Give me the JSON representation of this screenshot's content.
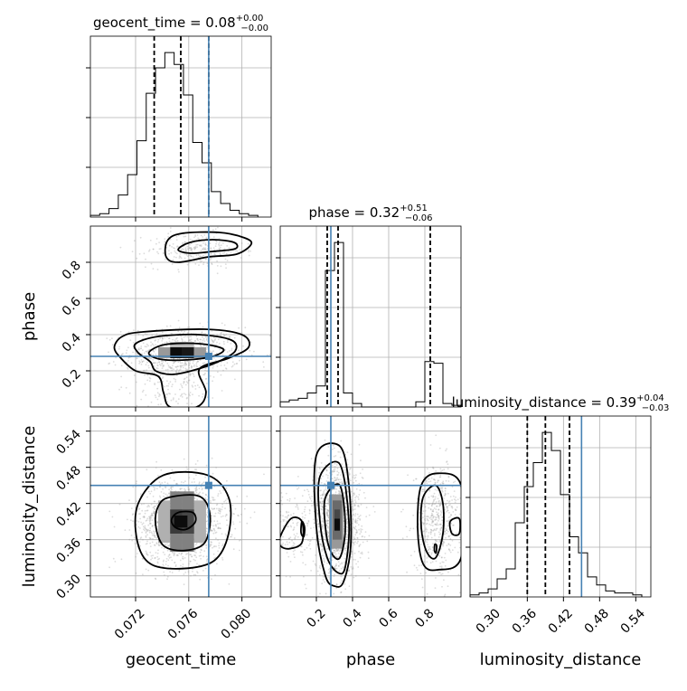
{
  "chart_data": {
    "type": "corner",
    "parameters": [
      "geocent_time",
      "phase",
      "luminosity_distance"
    ],
    "truth": {
      "geocent_time": 0.0775,
      "phase": 0.28,
      "luminosity_distance": 0.45
    },
    "titles": [
      {
        "param": "geocent_time",
        "prefix": "geocent_time = 0.08",
        "sup": "+0.00",
        "sub": "−0.00"
      },
      {
        "param": "phase",
        "prefix": "phase = 0.32",
        "sup": "+0.51",
        "sub": "−0.06"
      },
      {
        "param": "luminosity_distance",
        "prefix": "luminosity_distance = 0.39",
        "sup": "+0.04",
        "sub": "−0.03"
      }
    ],
    "axes": {
      "geocent_time": {
        "label": "geocent_time",
        "range": [
          0.0686,
          0.0822
        ],
        "ticks": [
          0.072,
          0.076,
          0.08
        ],
        "tick_labels": [
          "0.072",
          "0.076",
          "0.080"
        ]
      },
      "phase": {
        "label": "phase",
        "range": [
          0.0,
          1.0
        ],
        "ticks": [
          0.2,
          0.4,
          0.6,
          0.8
        ],
        "tick_labels": [
          "0.2",
          "0.4",
          "0.6",
          "0.8"
        ]
      },
      "luminosity_distance": {
        "label": "luminosity_distance",
        "range": [
          0.265,
          0.565
        ],
        "ticks": [
          0.3,
          0.36,
          0.42,
          0.48,
          0.54
        ],
        "tick_labels": [
          "0.30",
          "0.36",
          "0.42",
          "0.48",
          "0.54"
        ]
      }
    },
    "histograms": {
      "geocent_time": {
        "bin_edges": [
          0.0686,
          0.0693,
          0.07,
          0.0707,
          0.0714,
          0.0721,
          0.0728,
          0.0735,
          0.0742,
          0.0749,
          0.0756,
          0.0763,
          0.077,
          0.0777,
          0.0784,
          0.0791,
          0.0798,
          0.0805,
          0.0812
        ],
        "counts": [
          1,
          2,
          5,
          13,
          25,
          45,
          73,
          88,
          97,
          90,
          72,
          44,
          32,
          15,
          8,
          4,
          2,
          1
        ],
        "quantiles": [
          0.0734,
          0.0754,
          0.0775
        ]
      },
      "phase": {
        "bin_edges": [
          0.0,
          0.05,
          0.1,
          0.15,
          0.2,
          0.25,
          0.3,
          0.35,
          0.4,
          0.45,
          0.5,
          0.55,
          0.6,
          0.65,
          0.7,
          0.75,
          0.8,
          0.85,
          0.9,
          0.95,
          1.0
        ],
        "counts": [
          3,
          4,
          5,
          8,
          12,
          78,
          94,
          8,
          2,
          0,
          0,
          0,
          0,
          0,
          0,
          3,
          26,
          25,
          2,
          1
        ],
        "quantiles": [
          0.26,
          0.32,
          0.83
        ]
      },
      "luminosity_distance": {
        "bin_edges": [
          0.265,
          0.28,
          0.295,
          0.31,
          0.325,
          0.34,
          0.355,
          0.37,
          0.385,
          0.4,
          0.415,
          0.43,
          0.445,
          0.46,
          0.475,
          0.49,
          0.505,
          0.52,
          0.535,
          0.55
        ],
        "counts": [
          1,
          2,
          4,
          9,
          14,
          37,
          55,
          67,
          82,
          73,
          51,
          30,
          22,
          10,
          6,
          3,
          2,
          2,
          1
        ],
        "quantiles": [
          0.36,
          0.39,
          0.43
        ]
      }
    },
    "pairs": [
      {
        "x": "geocent_time",
        "y": "phase",
        "scatter_clusters": [
          {
            "cx": 0.0755,
            "cy": 0.3,
            "sx": 0.0022,
            "sy": 0.07,
            "n": 700
          },
          {
            "cx": 0.0765,
            "cy": 0.87,
            "sx": 0.0018,
            "sy": 0.05,
            "n": 280
          },
          {
            "cx": 0.0752,
            "cy": 0.12,
            "sx": 0.0016,
            "sy": 0.08,
            "n": 160
          }
        ],
        "heat_cells": [
          {
            "x0": 0.0737,
            "x1": 0.0746,
            "y0": 0.27,
            "y1": 0.33,
            "level": 0.35
          },
          {
            "x0": 0.0746,
            "x1": 0.0755,
            "y0": 0.27,
            "y1": 0.33,
            "level": 0.95
          },
          {
            "x0": 0.0755,
            "x1": 0.0764,
            "y0": 0.27,
            "y1": 0.33,
            "level": 0.9
          },
          {
            "x0": 0.0764,
            "x1": 0.0773,
            "y0": 0.27,
            "y1": 0.33,
            "level": 0.35
          },
          {
            "x0": 0.0746,
            "x1": 0.0764,
            "y0": 0.33,
            "y1": 0.36,
            "level": 0.2
          }
        ],
        "contours": [
          {
            "points": [
              [
                0.0761,
                0.91
              ],
              [
                0.0778,
                0.925
              ],
              [
                0.0794,
                0.91
              ],
              [
                0.0795,
                0.875
              ],
              [
                0.0778,
                0.86
              ],
              [
                0.0761,
                0.85
              ],
              [
                0.0752,
                0.87
              ]
            ]
          },
          {
            "points": [
              [
                0.0755,
                0.96
              ],
              [
                0.0783,
                0.965
              ],
              [
                0.0802,
                0.935
              ],
              [
                0.0807,
                0.9
              ],
              [
                0.0796,
                0.845
              ],
              [
                0.0775,
                0.83
              ],
              [
                0.0752,
                0.8
              ],
              [
                0.0743,
                0.83
              ],
              [
                0.0744,
                0.92
              ]
            ]
          },
          {
            "points": [
              [
                0.0742,
                0.345
              ],
              [
                0.0768,
                0.35
              ],
              [
                0.0786,
                0.32
              ],
              [
                0.0778,
                0.28
              ],
              [
                0.0757,
                0.26
              ],
              [
                0.0738,
                0.265
              ],
              [
                0.073,
                0.3
              ]
            ]
          },
          {
            "points": [
              [
                0.0737,
                0.39
              ],
              [
                0.0768,
                0.4
              ],
              [
                0.0792,
                0.37
              ],
              [
                0.0795,
                0.31
              ],
              [
                0.0782,
                0.25
              ],
              [
                0.0762,
                0.2
              ],
              [
                0.0747,
                0.18
              ],
              [
                0.0735,
                0.2
              ],
              [
                0.0731,
                0.25
              ],
              [
                0.0722,
                0.3
              ],
              [
                0.072,
                0.35
              ]
            ]
          },
          {
            "points": [
              [
                0.0725,
                0.415
              ],
              [
                0.0772,
                0.43
              ],
              [
                0.08,
                0.4
              ],
              [
                0.0805,
                0.33
              ],
              [
                0.079,
                0.27
              ],
              [
                0.0768,
                0.21
              ],
              [
                0.0773,
                0.08
              ],
              [
                0.0766,
                0.0
              ],
              [
                0.0746,
                0.0
              ],
              [
                0.0741,
                0.08
              ],
              [
                0.0737,
                0.17
              ],
              [
                0.072,
                0.2
              ],
              [
                0.0709,
                0.27
              ],
              [
                0.0704,
                0.33
              ],
              [
                0.071,
                0.39
              ]
            ]
          }
        ]
      },
      {
        "x": "geocent_time",
        "y": "luminosity_distance",
        "scatter_clusters": [
          {
            "cx": 0.0755,
            "cy": 0.39,
            "sx": 0.0017,
            "sy": 0.036,
            "n": 1500
          }
        ],
        "heat_cells": [
          {
            "x0": 0.0737,
            "x1": 0.0746,
            "y0": 0.355,
            "y1": 0.425,
            "level": 0.25
          },
          {
            "x0": 0.0764,
            "x1": 0.0773,
            "y0": 0.355,
            "y1": 0.425,
            "level": 0.25
          },
          {
            "x0": 0.0746,
            "x1": 0.0755,
            "y0": 0.34,
            "y1": 0.44,
            "level": 0.45
          },
          {
            "x0": 0.0755,
            "x1": 0.0764,
            "y0": 0.34,
            "y1": 0.44,
            "level": 0.45
          },
          {
            "x0": 0.0746,
            "x1": 0.0755,
            "y0": 0.37,
            "y1": 0.41,
            "level": 0.75
          },
          {
            "x0": 0.0755,
            "x1": 0.0764,
            "y0": 0.37,
            "y1": 0.41,
            "level": 0.7
          },
          {
            "x0": 0.0749,
            "x1": 0.0759,
            "y0": 0.38,
            "y1": 0.4,
            "level": 0.95
          }
        ],
        "contours": [
          {
            "points": [
              [
                0.0752,
                0.405
              ],
              [
                0.0763,
                0.405
              ],
              [
                0.0765,
                0.39
              ],
              [
                0.0758,
                0.377
              ],
              [
                0.075,
                0.38
              ],
              [
                0.0747,
                0.393
              ]
            ]
          },
          {
            "points": [
              [
                0.0745,
                0.43
              ],
              [
                0.0768,
                0.432
              ],
              [
                0.0776,
                0.4
              ],
              [
                0.0772,
                0.355
              ],
              [
                0.0757,
                0.342
              ],
              [
                0.0741,
                0.35
              ],
              [
                0.0735,
                0.385
              ],
              [
                0.0737,
                0.415
              ]
            ]
          },
          {
            "points": [
              [
                0.0741,
                0.467
              ],
              [
                0.0774,
                0.467
              ],
              [
                0.079,
                0.43
              ],
              [
                0.079,
                0.37
              ],
              [
                0.0779,
                0.325
              ],
              [
                0.0755,
                0.312
              ],
              [
                0.0731,
                0.32
              ],
              [
                0.0721,
                0.36
              ],
              [
                0.0722,
                0.42
              ]
            ]
          }
        ]
      },
      {
        "x": "phase",
        "y": "luminosity_distance",
        "scatter_clusters": [
          {
            "cx": 0.31,
            "cy": 0.39,
            "sx": 0.07,
            "sy": 0.045,
            "n": 1300
          },
          {
            "cx": 0.87,
            "cy": 0.395,
            "sx": 0.065,
            "sy": 0.045,
            "n": 500
          },
          {
            "cx": 0.05,
            "cy": 0.38,
            "sx": 0.04,
            "sy": 0.03,
            "n": 120
          }
        ],
        "heat_cells": [
          {
            "x0": 0.27,
            "x1": 0.35,
            "y0": 0.345,
            "y1": 0.435,
            "level": 0.35
          },
          {
            "x0": 0.29,
            "x1": 0.34,
            "y0": 0.36,
            "y1": 0.425,
            "level": 0.55
          },
          {
            "x0": 0.3,
            "x1": 0.33,
            "y0": 0.375,
            "y1": 0.395,
            "level": 0.95
          },
          {
            "x0": 0.3,
            "x1": 0.33,
            "y0": 0.395,
            "y1": 0.41,
            "level": 0.7
          }
        ],
        "contours": [
          {
            "points": [
              [
                0.25,
                0.43
              ],
              [
                0.33,
                0.45
              ],
              [
                0.36,
                0.38
              ],
              [
                0.33,
                0.33
              ],
              [
                0.28,
                0.34
              ],
              [
                0.25,
                0.38
              ]
            ]
          },
          {
            "points": [
              [
                0.22,
                0.465
              ],
              [
                0.33,
                0.485
              ],
              [
                0.38,
                0.39
              ],
              [
                0.36,
                0.315
              ],
              [
                0.32,
                0.305
              ],
              [
                0.26,
                0.33
              ],
              [
                0.22,
                0.39
              ]
            ]
          },
          {
            "points": [
              [
                0.2,
                0.5
              ],
              [
                0.33,
                0.515
              ],
              [
                0.38,
                0.45
              ],
              [
                0.39,
                0.35
              ],
              [
                0.35,
                0.29
              ],
              [
                0.3,
                0.283
              ],
              [
                0.25,
                0.3
              ],
              [
                0.2,
                0.38
              ]
            ]
          },
          {
            "points": [
              [
                0.79,
                0.43
              ],
              [
                0.86,
                0.45
              ],
              [
                0.9,
                0.42
              ],
              [
                0.9,
                0.37
              ],
              [
                0.86,
                0.33
              ],
              [
                0.81,
                0.34
              ],
              [
                0.78,
                0.38
              ]
            ]
          },
          {
            "points": [
              [
                0.78,
                0.45
              ],
              [
                0.87,
                0.47
              ],
              [
                1.0,
                0.45
              ],
              [
                1.0,
                0.33
              ],
              [
                0.87,
                0.31
              ],
              [
                0.79,
                0.32
              ],
              [
                0.76,
                0.38
              ]
            ]
          },
          {
            "points": [
              [
                0.0,
                0.365
              ],
              [
                0.06,
                0.395
              ],
              [
                0.12,
                0.39
              ],
              [
                0.12,
                0.355
              ],
              [
                0.05,
                0.345
              ],
              [
                0.0,
                0.35
              ]
            ]
          },
          {
            "points": [
              [
                0.12,
                0.39
              ],
              [
                0.135,
                0.38
              ],
              [
                0.13,
                0.365
              ],
              [
                0.115,
                0.372
              ]
            ]
          },
          {
            "points": [
              [
                0.855,
                0.352
              ],
              [
                0.865,
                0.35
              ],
              [
                0.862,
                0.338
              ],
              [
                0.853,
                0.342
              ]
            ]
          },
          {
            "points": [
              [
                0.94,
                0.39
              ],
              [
                0.99,
                0.395
              ],
              [
                0.99,
                0.37
              ],
              [
                0.95,
                0.37
              ]
            ]
          }
        ]
      }
    ]
  }
}
